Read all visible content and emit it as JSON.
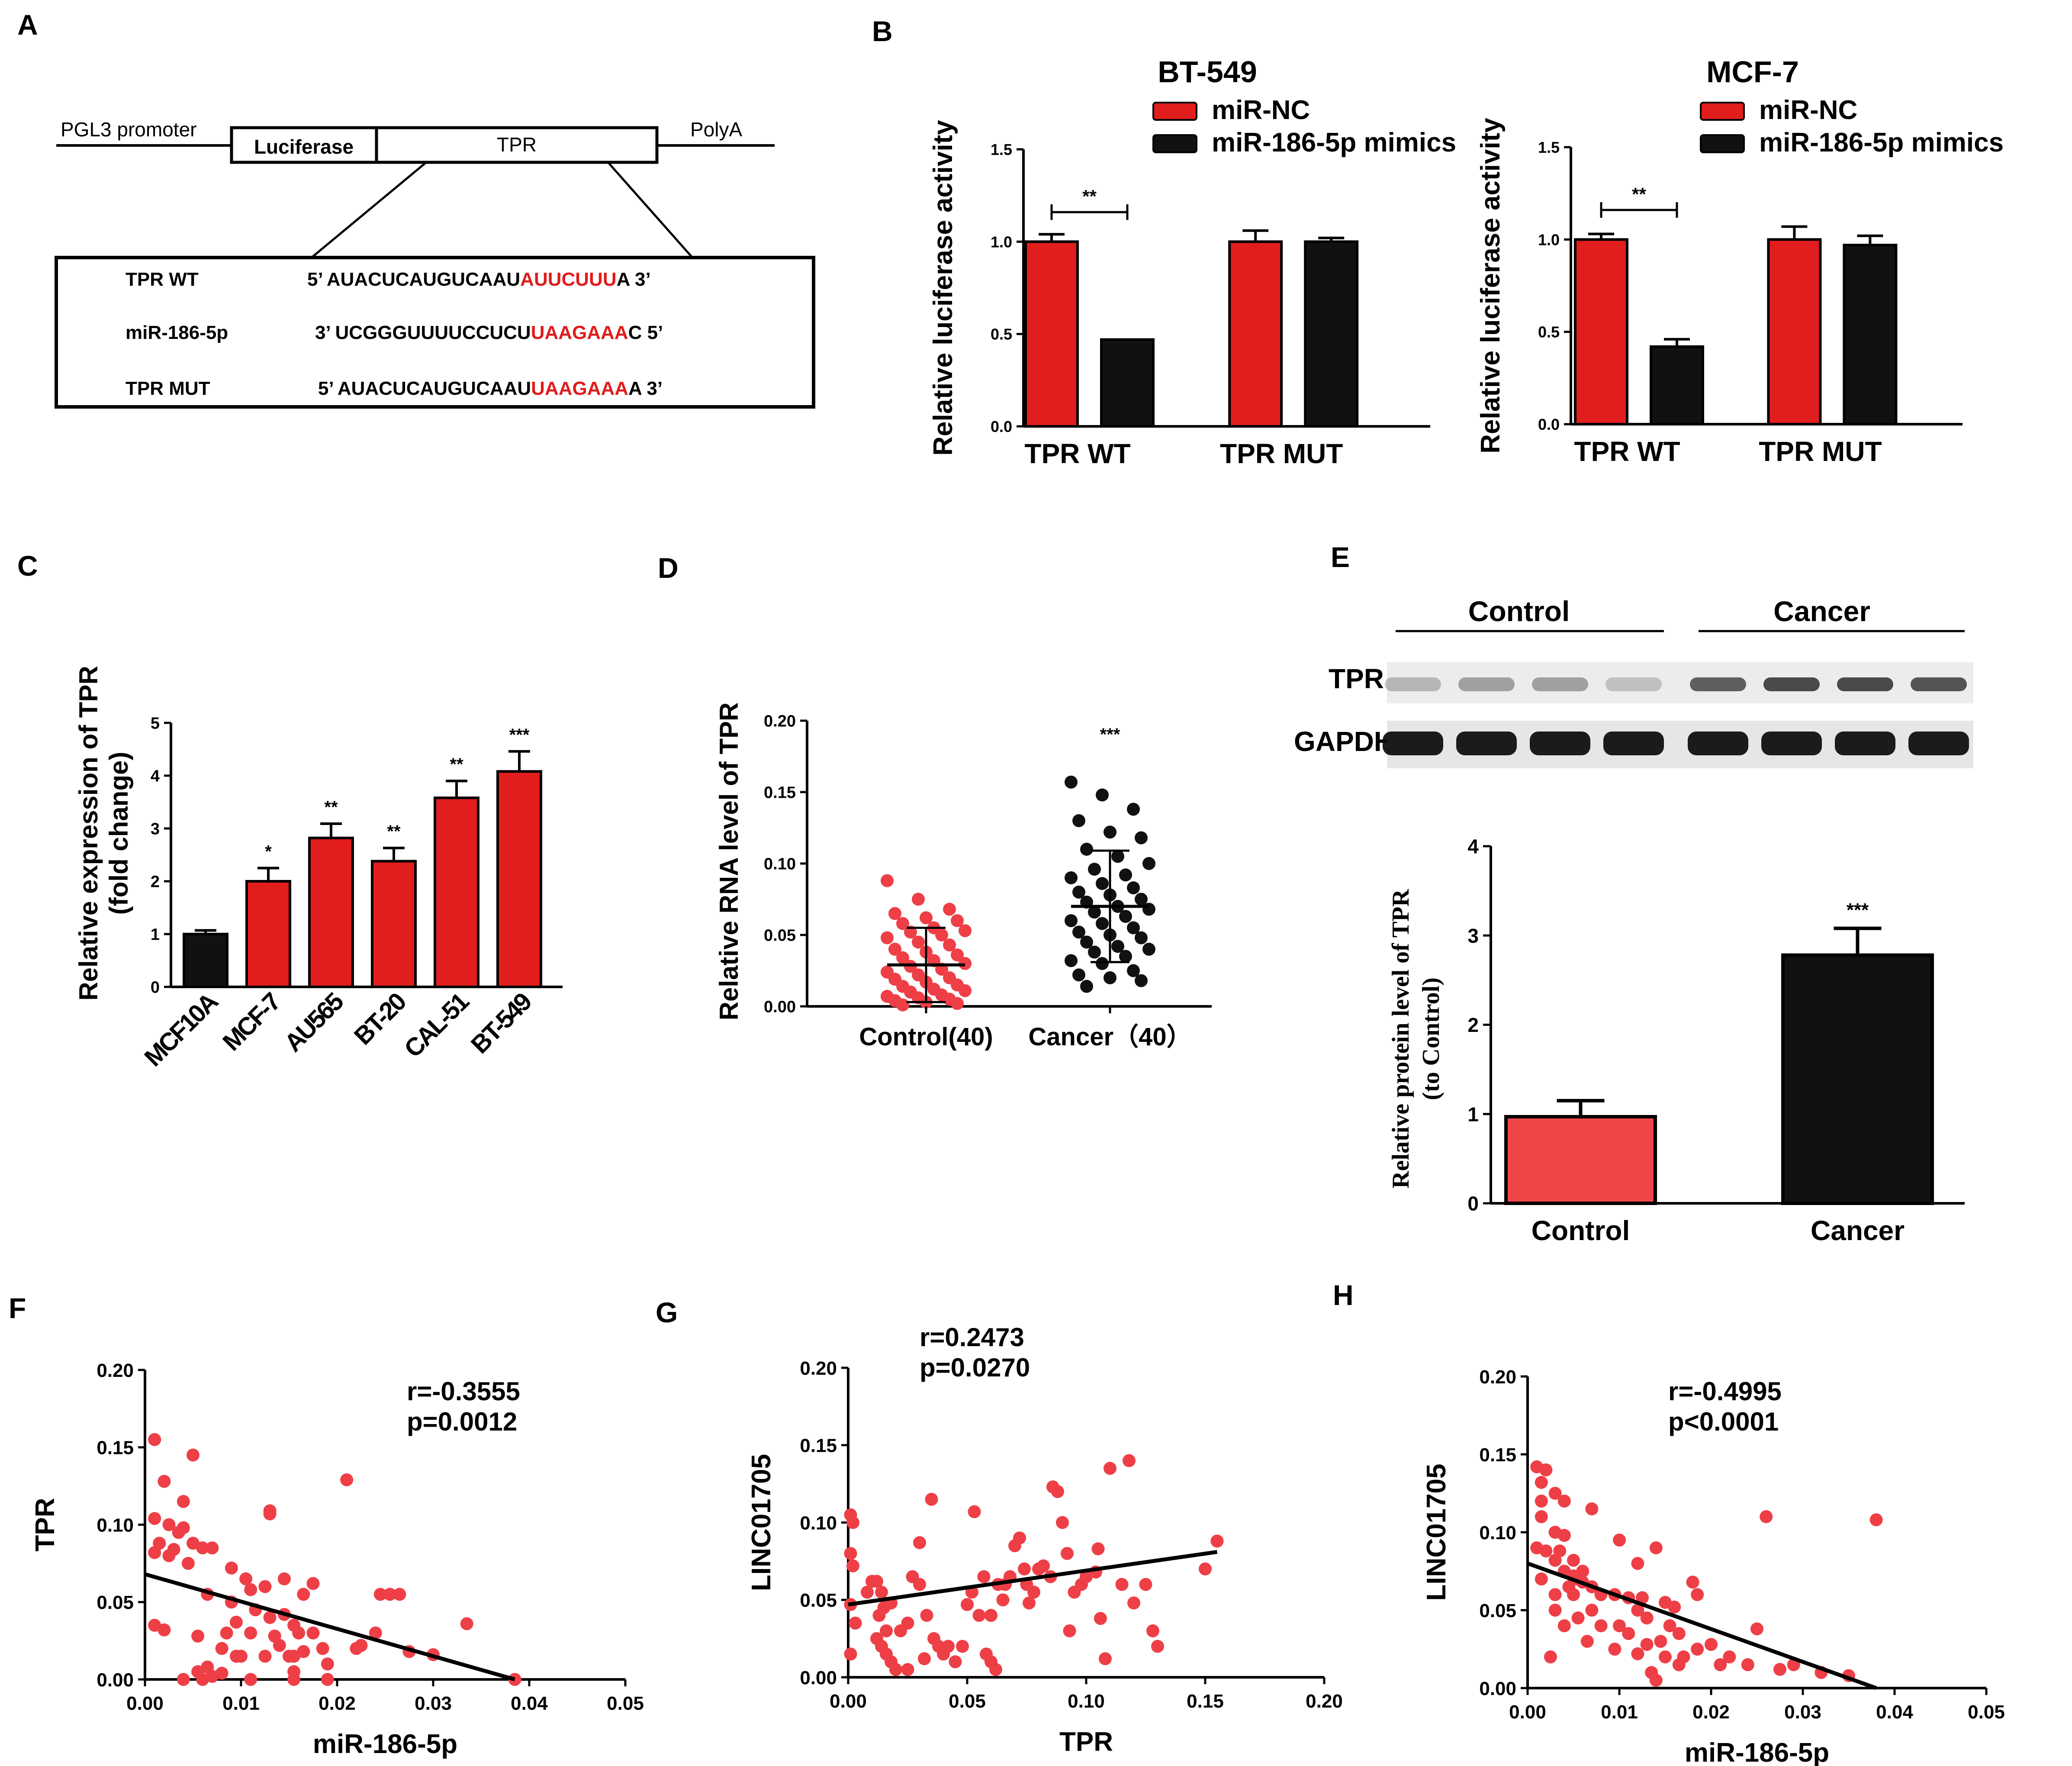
{
  "colors": {
    "red": "#e21d1d",
    "black": "#111111",
    "pink": "#f0464a",
    "dot_red": "#ee3f47",
    "seq_red": "#e01b1b"
  },
  "panel_labels": {
    "A": "A",
    "B": "B",
    "C": "C",
    "D": "D",
    "E": "E",
    "F": "F",
    "G": "G",
    "H": "H"
  },
  "panel_a": {
    "promoter": "PGL3 promoter",
    "luciferase": "Luciferase",
    "tpr": "TPR",
    "polya": "PolyA",
    "rows": [
      {
        "name": "TPR WT",
        "p5": "5’",
        "seq": "AUACUCAUGUCAAU",
        "hl": "AUUCUUU",
        "tail": "A",
        "p3": "3’"
      },
      {
        "name": "miR-186-5p",
        "p5": "3’",
        "seq": "UCGGGUUUUCCUCU",
        "hl": "UAAGAAA",
        "tail": "C",
        "p3": "5’"
      },
      {
        "name": "TPR MUT",
        "p5": "5’",
        "seq": "AUACUCAUGUCAAU",
        "hl": "UAAGAAA",
        "tail": "A",
        "p3": "3’"
      }
    ]
  },
  "chart_data": [
    {
      "id": "B1",
      "type": "bar",
      "title": "BT-549",
      "ylabel": "Relative luciferase activity",
      "xlabel": "",
      "categories": [
        "TPR WT",
        "TPR MUT"
      ],
      "series": [
        {
          "name": "miR-NC",
          "values": [
            1.0,
            1.0
          ],
          "errors": [
            0.04,
            0.06
          ]
        },
        {
          "name": "miR-186-5p mimics",
          "values": [
            0.47,
            1.0
          ],
          "errors": [
            0.0,
            0.02
          ]
        }
      ],
      "ylim": [
        0,
        1.5
      ],
      "yticks": [
        "0.0",
        "0.5",
        "1.0",
        "1.5"
      ],
      "annotation": "**",
      "legend": "top"
    },
    {
      "id": "B2",
      "type": "bar",
      "title": "MCF-7",
      "ylabel": "Relative luciferase activity",
      "xlabel": "",
      "categories": [
        "TPR WT",
        "TPR MUT"
      ],
      "series": [
        {
          "name": "miR-NC",
          "values": [
            1.0,
            1.0
          ],
          "errors": [
            0.03,
            0.07
          ]
        },
        {
          "name": "miR-186-5p mimics",
          "values": [
            0.42,
            0.97
          ],
          "errors": [
            0.04,
            0.05
          ]
        }
      ],
      "ylim": [
        0,
        1.5
      ],
      "yticks": [
        "0.0",
        "0.5",
        "1.0",
        "1.5"
      ],
      "annotation": "**",
      "legend": "top"
    },
    {
      "id": "C",
      "type": "bar",
      "ylabel": "Relative expression of TPR",
      "ylabel2": "(fold change)",
      "categories": [
        "MCF10A",
        "MCF-7",
        "AU565",
        "BT-20",
        "CAL-51",
        "BT-549"
      ],
      "values": [
        1.0,
        2.0,
        2.82,
        2.38,
        3.58,
        4.08
      ],
      "errors": [
        0.07,
        0.25,
        0.27,
        0.25,
        0.32,
        0.38
      ],
      "stars": [
        "",
        "*",
        "**",
        "**",
        "**",
        "***"
      ],
      "ylim": [
        0,
        5
      ],
      "yticks": [
        "0",
        "1",
        "2",
        "3",
        "4",
        "5"
      ]
    },
    {
      "id": "D",
      "type": "scatter",
      "ylabel": "Relative RNA level of TPR",
      "categories": [
        "Control(40)",
        "Cancer（40）"
      ],
      "ylim": [
        0,
        0.2
      ],
      "yticks": [
        "0.00",
        "0.05",
        "0.10",
        "0.15",
        "0.20"
      ],
      "groups": [
        {
          "name": "Control(40)",
          "mean": 0.029,
          "sd": 0.026,
          "values": [
            0.088,
            0.075,
            0.068,
            0.065,
            0.062,
            0.06,
            0.058,
            0.055,
            0.053,
            0.052,
            0.05,
            0.048,
            0.045,
            0.043,
            0.04,
            0.038,
            0.036,
            0.034,
            0.032,
            0.03,
            0.028,
            0.026,
            0.024,
            0.022,
            0.02,
            0.019,
            0.017,
            0.015,
            0.014,
            0.012,
            0.011,
            0.01,
            0.008,
            0.007,
            0.006,
            0.005,
            0.004,
            0.003,
            0.002,
            0.001
          ]
        },
        {
          "name": "Cancer（40）",
          "mean": 0.07,
          "sd": 0.039,
          "star": "***",
          "values": [
            0.157,
            0.148,
            0.138,
            0.13,
            0.122,
            0.118,
            0.11,
            0.105,
            0.1,
            0.096,
            0.092,
            0.09,
            0.086,
            0.083,
            0.08,
            0.078,
            0.075,
            0.073,
            0.07,
            0.068,
            0.066,
            0.063,
            0.06,
            0.058,
            0.055,
            0.052,
            0.05,
            0.048,
            0.045,
            0.042,
            0.04,
            0.038,
            0.035,
            0.032,
            0.03,
            0.025,
            0.022,
            0.02,
            0.018,
            0.014
          ]
        }
      ]
    },
    {
      "id": "E",
      "type": "bar",
      "ylabel": "Relative protein level of TPR",
      "ylabel2": "(to Control)",
      "categories": [
        "Control",
        "Cancer"
      ],
      "values": [
        0.97,
        2.78
      ],
      "errors": [
        0.18,
        0.3
      ],
      "stars": [
        "",
        "***"
      ],
      "ylim": [
        0,
        4
      ],
      "yticks": [
        "0",
        "1",
        "2",
        "3",
        "4"
      ]
    },
    {
      "id": "F",
      "type": "scatter",
      "xlabel": "miR-186-5p",
      "ylabel": "TPR",
      "xlim": [
        0,
        0.05
      ],
      "ylim": [
        0,
        0.2
      ],
      "xticks": [
        "0.00",
        "0.01",
        "0.02",
        "0.03",
        "0.04",
        "0.05"
      ],
      "yticks": [
        "0.00",
        "0.05",
        "0.10",
        "0.15",
        "0.20"
      ],
      "r_text": "r=-0.3555",
      "p_text": "p=0.0012",
      "fit": {
        "x1": 0.0,
        "y1": 0.068,
        "x2": 0.0385,
        "y2": 0.0
      },
      "points": [
        [
          0.001,
          0.155
        ],
        [
          0.002,
          0.128
        ],
        [
          0.005,
          0.145
        ],
        [
          0.004,
          0.115
        ],
        [
          0.001,
          0.104
        ],
        [
          0.0025,
          0.1
        ],
        [
          0.004,
          0.098
        ],
        [
          0.0035,
          0.095
        ],
        [
          0.005,
          0.088
        ],
        [
          0.006,
          0.085
        ],
        [
          0.007,
          0.085
        ],
        [
          0.003,
          0.084
        ],
        [
          0.0025,
          0.08
        ],
        [
          0.001,
          0.082
        ],
        [
          0.0015,
          0.088
        ],
        [
          0.0045,
          0.075
        ],
        [
          0.009,
          0.072
        ],
        [
          0.0105,
          0.065
        ],
        [
          0.011,
          0.058
        ],
        [
          0.013,
          0.109
        ],
        [
          0.013,
          0.107
        ],
        [
          0.0125,
          0.06
        ],
        [
          0.0145,
          0.065
        ],
        [
          0.0175,
          0.062
        ],
        [
          0.0165,
          0.055
        ],
        [
          0.0065,
          0.055
        ],
        [
          0.009,
          0.05
        ],
        [
          0.0115,
          0.045
        ],
        [
          0.0095,
          0.037
        ],
        [
          0.0145,
          0.042
        ],
        [
          0.0155,
          0.035
        ],
        [
          0.016,
          0.03
        ],
        [
          0.011,
          0.03
        ],
        [
          0.0055,
          0.028
        ],
        [
          0.001,
          0.035
        ],
        [
          0.002,
          0.032
        ],
        [
          0.008,
          0.02
        ],
        [
          0.0095,
          0.015
        ],
        [
          0.01,
          0.015
        ],
        [
          0.0125,
          0.015
        ],
        [
          0.014,
          0.022
        ],
        [
          0.015,
          0.015
        ],
        [
          0.0165,
          0.018
        ],
        [
          0.0155,
          0.015
        ],
        [
          0.0185,
          0.02
        ],
        [
          0.021,
          0.129
        ],
        [
          0.0245,
          0.055
        ],
        [
          0.0255,
          0.055
        ],
        [
          0.0265,
          0.055
        ],
        [
          0.024,
          0.03
        ],
        [
          0.022,
          0.02
        ],
        [
          0.0275,
          0.018
        ],
        [
          0.03,
          0.016
        ],
        [
          0.0335,
          0.036
        ],
        [
          0.0385,
          0.0
        ],
        [
          0.0055,
          0.005
        ],
        [
          0.007,
          0.002
        ],
        [
          0.004,
          0.0
        ],
        [
          0.006,
          0.0
        ],
        [
          0.008,
          0.004
        ],
        [
          0.011,
          0.0
        ],
        [
          0.0155,
          0.0
        ],
        [
          0.019,
          0.0
        ],
        [
          0.0065,
          0.008
        ],
        [
          0.0085,
          0.03
        ],
        [
          0.013,
          0.04
        ],
        [
          0.0135,
          0.028
        ],
        [
          0.0155,
          0.005
        ],
        [
          0.0175,
          0.03
        ],
        [
          0.019,
          0.01
        ],
        [
          0.0225,
          0.022
        ]
      ]
    },
    {
      "id": "G",
      "type": "scatter",
      "xlabel": "TPR",
      "ylabel": "LINC01705",
      "xlim": [
        0,
        0.2
      ],
      "ylim": [
        0,
        0.2
      ],
      "xticks": [
        "0.00",
        "0.05",
        "0.10",
        "0.15",
        "0.20"
      ],
      "yticks": [
        "0.00",
        "0.05",
        "0.10",
        "0.15",
        "0.20"
      ],
      "r_text": "r=0.2473",
      "p_text": "p=0.0270",
      "fit": {
        "x1": 0.0,
        "y1": 0.047,
        "x2": 0.155,
        "y2": 0.081
      },
      "points": [
        [
          0.001,
          0.105
        ],
        [
          0.002,
          0.1
        ],
        [
          0.001,
          0.08
        ],
        [
          0.002,
          0.072
        ],
        [
          0.001,
          0.047
        ],
        [
          0.001,
          0.015
        ],
        [
          0.003,
          0.035
        ],
        [
          0.008,
          0.055
        ],
        [
          0.01,
          0.062
        ],
        [
          0.012,
          0.062
        ],
        [
          0.014,
          0.055
        ],
        [
          0.015,
          0.045
        ],
        [
          0.013,
          0.04
        ],
        [
          0.016,
          0.03
        ],
        [
          0.012,
          0.025
        ],
        [
          0.014,
          0.02
        ],
        [
          0.016,
          0.015
        ],
        [
          0.018,
          0.01
        ],
        [
          0.02,
          0.005
        ],
        [
          0.022,
          0.03
        ],
        [
          0.025,
          0.035
        ],
        [
          0.027,
          0.065
        ],
        [
          0.03,
          0.06
        ],
        [
          0.03,
          0.087
        ],
        [
          0.033,
          0.04
        ],
        [
          0.035,
          0.115
        ],
        [
          0.036,
          0.025
        ],
        [
          0.038,
          0.02
        ],
        [
          0.042,
          0.02
        ],
        [
          0.04,
          0.015
        ],
        [
          0.045,
          0.01
        ],
        [
          0.048,
          0.02
        ],
        [
          0.05,
          0.047
        ],
        [
          0.052,
          0.055
        ],
        [
          0.053,
          0.107
        ],
        [
          0.055,
          0.04
        ],
        [
          0.057,
          0.065
        ],
        [
          0.058,
          0.015
        ],
        [
          0.06,
          0.01
        ],
        [
          0.062,
          0.005
        ],
        [
          0.063,
          0.06
        ],
        [
          0.065,
          0.05
        ],
        [
          0.068,
          0.065
        ],
        [
          0.07,
          0.085
        ],
        [
          0.072,
          0.09
        ],
        [
          0.074,
          0.07
        ],
        [
          0.075,
          0.06
        ],
        [
          0.076,
          0.048
        ],
        [
          0.078,
          0.055
        ],
        [
          0.08,
          0.07
        ],
        [
          0.082,
          0.072
        ],
        [
          0.085,
          0.065
        ],
        [
          0.086,
          0.123
        ],
        [
          0.088,
          0.12
        ],
        [
          0.09,
          0.1
        ],
        [
          0.092,
          0.08
        ],
        [
          0.093,
          0.03
        ],
        [
          0.095,
          0.055
        ],
        [
          0.098,
          0.06
        ],
        [
          0.1,
          0.065
        ],
        [
          0.104,
          0.068
        ],
        [
          0.105,
          0.083
        ],
        [
          0.106,
          0.038
        ],
        [
          0.108,
          0.012
        ],
        [
          0.11,
          0.135
        ],
        [
          0.115,
          0.06
        ],
        [
          0.118,
          0.14
        ],
        [
          0.12,
          0.048
        ],
        [
          0.125,
          0.06
        ],
        [
          0.128,
          0.03
        ],
        [
          0.13,
          0.02
        ],
        [
          0.15,
          0.07
        ],
        [
          0.155,
          0.088
        ],
        [
          0.018,
          0.048
        ],
        [
          0.025,
          0.005
        ],
        [
          0.032,
          0.012
        ],
        [
          0.06,
          0.04
        ],
        [
          0.066,
          0.06
        ]
      ]
    },
    {
      "id": "H",
      "type": "scatter",
      "xlabel": "miR-186-5p",
      "ylabel": "LINC01705",
      "xlim": [
        0,
        0.05
      ],
      "ylim": [
        0,
        0.2
      ],
      "xticks": [
        "0.00",
        "0.01",
        "0.02",
        "0.03",
        "0.04",
        "0.05"
      ],
      "yticks": [
        "0.00",
        "0.05",
        "0.10",
        "0.15",
        "0.20"
      ],
      "r_text": "r=-0.4995",
      "p_text": "p<0.0001",
      "fit": {
        "x1": 0.0,
        "y1": 0.08,
        "x2": 0.038,
        "y2": 0.0
      },
      "points": [
        [
          0.001,
          0.142
        ],
        [
          0.002,
          0.14
        ],
        [
          0.0015,
          0.132
        ],
        [
          0.003,
          0.125
        ],
        [
          0.0015,
          0.12
        ],
        [
          0.004,
          0.12
        ],
        [
          0.0015,
          0.11
        ],
        [
          0.007,
          0.115
        ],
        [
          0.001,
          0.09
        ],
        [
          0.002,
          0.088
        ],
        [
          0.003,
          0.1
        ],
        [
          0.004,
          0.098
        ],
        [
          0.0035,
          0.088
        ],
        [
          0.003,
          0.082
        ],
        [
          0.004,
          0.075
        ],
        [
          0.005,
          0.082
        ],
        [
          0.0055,
          0.07
        ],
        [
          0.006,
          0.075
        ],
        [
          0.0045,
          0.065
        ],
        [
          0.005,
          0.06
        ],
        [
          0.007,
          0.065
        ],
        [
          0.008,
          0.06
        ],
        [
          0.01,
          0.095
        ],
        [
          0.012,
          0.08
        ],
        [
          0.014,
          0.09
        ],
        [
          0.0095,
          0.06
        ],
        [
          0.011,
          0.058
        ],
        [
          0.012,
          0.05
        ],
        [
          0.013,
          0.045
        ],
        [
          0.015,
          0.055
        ],
        [
          0.016,
          0.052
        ],
        [
          0.018,
          0.068
        ],
        [
          0.0185,
          0.06
        ],
        [
          0.0155,
          0.04
        ],
        [
          0.0165,
          0.035
        ],
        [
          0.0145,
          0.03
        ],
        [
          0.013,
          0.028
        ],
        [
          0.012,
          0.022
        ],
        [
          0.011,
          0.035
        ],
        [
          0.0095,
          0.025
        ],
        [
          0.008,
          0.04
        ],
        [
          0.007,
          0.05
        ],
        [
          0.0055,
          0.045
        ],
        [
          0.004,
          0.04
        ],
        [
          0.003,
          0.05
        ],
        [
          0.0025,
          0.02
        ],
        [
          0.003,
          0.06
        ],
        [
          0.0015,
          0.07
        ],
        [
          0.006,
          0.068
        ],
        [
          0.0135,
          0.01
        ],
        [
          0.014,
          0.005
        ],
        [
          0.0165,
          0.015
        ],
        [
          0.017,
          0.02
        ],
        [
          0.02,
          0.028
        ],
        [
          0.022,
          0.02
        ],
        [
          0.024,
          0.015
        ],
        [
          0.025,
          0.038
        ],
        [
          0.026,
          0.11
        ],
        [
          0.0275,
          0.012
        ],
        [
          0.029,
          0.015
        ],
        [
          0.032,
          0.01
        ],
        [
          0.035,
          0.008
        ],
        [
          0.038,
          0.108
        ],
        [
          0.005,
          0.072
        ],
        [
          0.0065,
          0.03
        ],
        [
          0.01,
          0.04
        ],
        [
          0.0125,
          0.058
        ],
        [
          0.015,
          0.02
        ],
        [
          0.0185,
          0.025
        ],
        [
          0.021,
          0.015
        ]
      ]
    }
  ]
}
